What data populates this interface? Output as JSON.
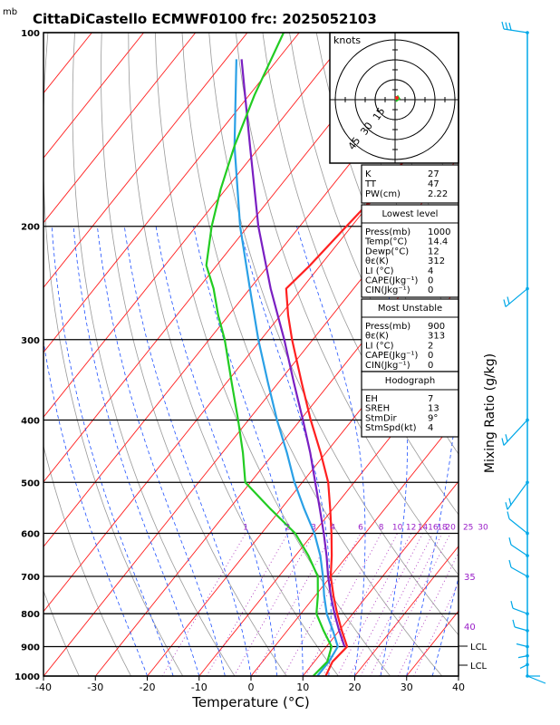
{
  "title": "CittaDiCastello  ECMWF0100  frc: 2025052103",
  "pressure_unit": "mb",
  "x_axis_label": "Temperature (°C)",
  "mixing_ratio_label": "Mixing Ratio (g/kg)",
  "hodograph": {
    "unit": "knots",
    "rings": [
      "15",
      "30",
      "45"
    ]
  },
  "indices": {
    "rows": [
      {
        "label": "K",
        "value": "27"
      },
      {
        "label": "TT",
        "value": "47"
      },
      {
        "label": "PW(cm)",
        "value": "2.22"
      }
    ]
  },
  "lowest_level": {
    "header": "Lowest level",
    "rows": [
      {
        "label": "Press(mb)",
        "value": "1000"
      },
      {
        "label": "Temp(°C)",
        "value": "14.4"
      },
      {
        "label": "Dewp(°C)",
        "value": "12"
      },
      {
        "label": "θε(K)",
        "value": "312"
      },
      {
        "label": "LI (°C)",
        "value": "4"
      },
      {
        "label": "CAPE(Jkg⁻¹)",
        "value": "0"
      },
      {
        "label": "CIN(Jkg⁻¹)",
        "value": "0"
      }
    ]
  },
  "most_unstable": {
    "header": "Most Unstable",
    "rows": [
      {
        "label": "Press(mb)",
        "value": "900"
      },
      {
        "label": "θε(K)",
        "value": "313"
      },
      {
        "label": "LI (°C)",
        "value": "2"
      },
      {
        "label": "CAPE(Jkg⁻¹)",
        "value": "0"
      },
      {
        "label": "CIN(Jkg⁻¹)",
        "value": "0"
      }
    ]
  },
  "hodograph_box": {
    "header": "Hodograph",
    "rows": [
      {
        "label": "EH",
        "value": "7"
      },
      {
        "label": "SREH",
        "value": "13"
      },
      {
        "label": "StmDir",
        "value": "9°"
      },
      {
        "label": "StmSpd(kt)",
        "value": "4"
      }
    ]
  },
  "right_labels": {
    "theta_e_35": "35",
    "theta_e_40": "40",
    "lcl_upper": "LCL",
    "lcl_lower": "LCL"
  },
  "colors": {
    "temperature": "#ff2020",
    "isotherm": "#ff2020",
    "dewpoint": "#22cc22",
    "parcel": "#7a1fc2",
    "wetbulb": "#2aa0e6",
    "mixing": "#0000cc",
    "moist_adiabat": "#1e50ff",
    "dry_adiabat": "#999999",
    "theta_label": "#9a1ec8",
    "wind_barb": "#00a8e8"
  },
  "chart_data": {
    "type": "skew-t",
    "x_ticks": [
      -40,
      -30,
      -20,
      -10,
      0,
      10,
      20,
      30,
      40
    ],
    "p_ticks": [
      100,
      200,
      300,
      400,
      500,
      600,
      700,
      800,
      900,
      1000
    ],
    "xlim": [
      -40,
      40
    ],
    "plim": [
      1000,
      100
    ],
    "mixing_ratio_values": [
      "1",
      "2",
      "3",
      "4",
      "6",
      "8",
      "10",
      "12",
      "14",
      "16",
      "18",
      "20",
      "25",
      "30"
    ],
    "temperature": {
      "p": [
        1000,
        950,
        900,
        850,
        800,
        750,
        700,
        650,
        600,
        550,
        500,
        450,
        400,
        350,
        300,
        275,
        250,
        230,
        200,
        175,
        150,
        125,
        100
      ],
      "t": [
        14.4,
        13.5,
        14.0,
        10.5,
        7.0,
        3.5,
        0.0,
        -3.0,
        -6.5,
        -10.5,
        -15.0,
        -21.0,
        -28.0,
        -35.5,
        -44.0,
        -48.5,
        -53.0,
        -52.0,
        -51.0,
        -50.0,
        -50.0,
        -48.5,
        -46.0
      ]
    },
    "dewpoint": {
      "p": [
        1000,
        950,
        900,
        850,
        800,
        750,
        700,
        650,
        600,
        550,
        500,
        450,
        400,
        350,
        300,
        275,
        250,
        230,
        200,
        175,
        150,
        125,
        100
      ],
      "t": [
        12.0,
        12.5,
        11.0,
        7.0,
        3.0,
        0.5,
        -2.5,
        -7.5,
        -13.5,
        -22.0,
        -31.0,
        -36.0,
        -42.0,
        -49.0,
        -57.0,
        -62.0,
        -67.0,
        -72.0,
        -77.0,
        -81.0,
        -85.0,
        -89.0,
        -93.0
      ]
    },
    "parcel": {
      "p": [
        900,
        850,
        800,
        750,
        700,
        650,
        600,
        550,
        500,
        450,
        400,
        350,
        300,
        250,
        200,
        150,
        110
      ],
      "t": [
        13.5,
        10.0,
        6.5,
        3.0,
        -0.5,
        -4.0,
        -8.0,
        -12.5,
        -17.5,
        -23.0,
        -29.5,
        -37.0,
        -45.5,
        -56.0,
        -68.0,
        -82.0,
        -97.0
      ]
    },
    "wetbulb": {
      "p": [
        1000,
        950,
        900,
        850,
        800,
        750,
        700,
        650,
        600,
        550,
        500,
        450,
        400,
        350,
        300,
        250,
        200,
        150,
        110
      ],
      "t": [
        12.8,
        12.8,
        12.2,
        8.8,
        5.0,
        1.7,
        -1.5,
        -5.2,
        -9.8,
        -15.5,
        -21.5,
        -27.5,
        -34.5,
        -42.0,
        -50.5,
        -60.0,
        -71.5,
        -85.0,
        -98.0
      ]
    }
  }
}
